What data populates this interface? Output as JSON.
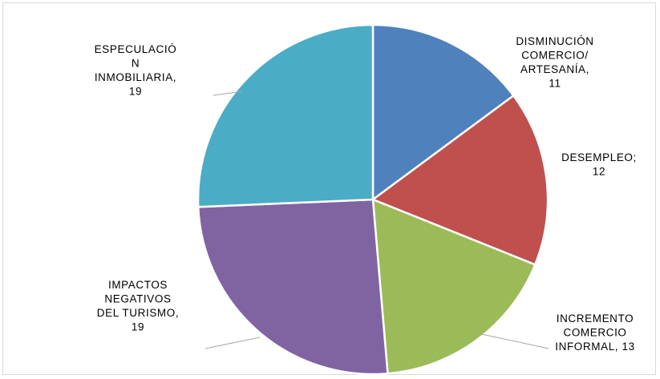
{
  "chart_data": {
    "type": "pie",
    "title": "",
    "legend": "none",
    "start_angle_deg": 0,
    "direction": "clockwise",
    "slices": [
      {
        "category": "DISMINUCIÓN COMERCIO/ ARTESANÍA",
        "value": 11,
        "color": "#4f81bd",
        "label_lines": [
          "DISMINUCIÓN",
          "COMERCIO/",
          "ARTESANÍA,",
          "11"
        ]
      },
      {
        "category": "DESEMPLEO",
        "value": 12,
        "color": "#c0504d",
        "label_lines": [
          "DESEMPLEO;",
          "12"
        ]
      },
      {
        "category": "INCREMENTO COMERCIO INFORMAL",
        "value": 13,
        "color": "#9bbb59",
        "label_lines": [
          "INCREMENTO",
          "COMERCIO",
          "INFORMAL, 13"
        ]
      },
      {
        "category": "IMPACTOS NEGATIVOS DEL TURISMO",
        "value": 19,
        "color": "#8064a2",
        "label_lines": [
          "IMPACTOS",
          "NEGATIVOS",
          "DEL TURISMO,",
          "19"
        ]
      },
      {
        "category": "ESPECULACIÓN INMOBILIARIA",
        "value": 19,
        "color": "#4bacc6",
        "label_lines": [
          "ESPECULACIÓ",
          "N",
          "INMOBILIARIA,",
          "19"
        ]
      }
    ]
  }
}
